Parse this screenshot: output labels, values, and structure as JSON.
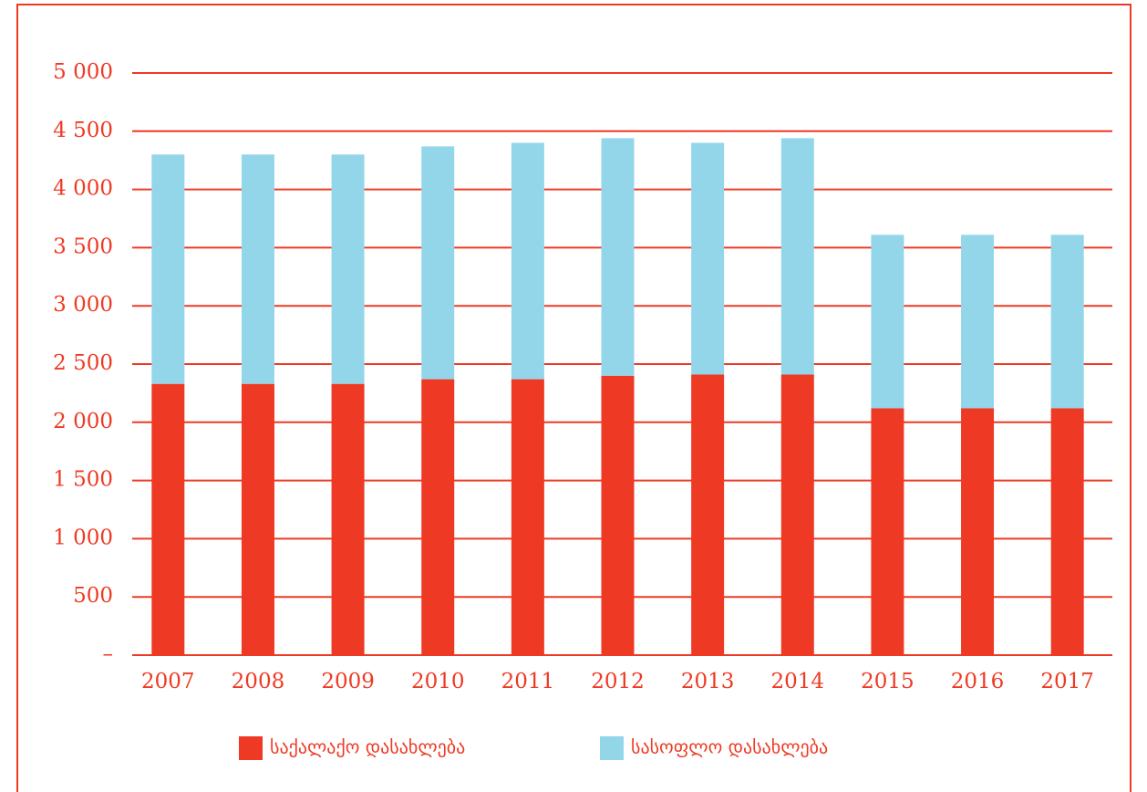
{
  "chart_data": {
    "type": "stacked_bar",
    "categories": [
      "2007",
      "2008",
      "2009",
      "2010",
      "2011",
      "2012",
      "2013",
      "2014",
      "2015",
      "2016",
      "2017"
    ],
    "series": [
      {
        "name": "საქალაქო დასახლება",
        "color": "#ee3a24",
        "values": [
          2330,
          2330,
          2330,
          2370,
          2370,
          2400,
          2410,
          2410,
          2120,
          2120,
          2120
        ]
      },
      {
        "name": "სასოფლო დასახლება",
        "color": "#93d6ea",
        "values": [
          1970,
          1970,
          1970,
          2000,
          2030,
          2040,
          1990,
          2030,
          1490,
          1490,
          1490
        ]
      }
    ],
    "ylim": [
      0,
      5000
    ],
    "yticks": [
      {
        "value": 0,
        "label": "–"
      },
      {
        "value": 500,
        "label": "500"
      },
      {
        "value": 1000,
        "label": "1 000"
      },
      {
        "value": 1500,
        "label": "1 500"
      },
      {
        "value": 2000,
        "label": "2 000"
      },
      {
        "value": 2500,
        "label": "2 500"
      },
      {
        "value": 3000,
        "label": "3 000"
      },
      {
        "value": 3500,
        "label": "3 500"
      },
      {
        "value": 4000,
        "label": "4 000"
      },
      {
        "value": 4500,
        "label": "4 500"
      },
      {
        "value": 5000,
        "label": "5 000"
      }
    ],
    "grid": true,
    "grid_color": "#ee3a24",
    "legend": "bottom"
  }
}
